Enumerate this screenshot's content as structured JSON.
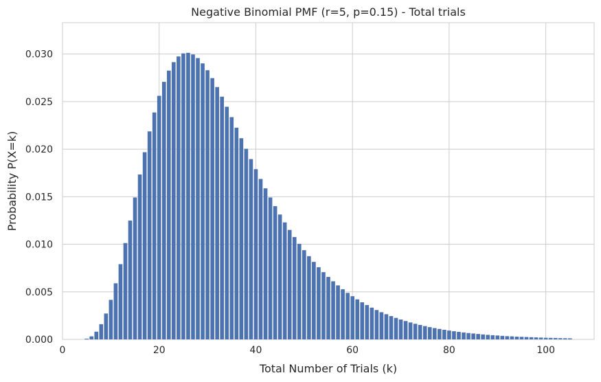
{
  "chart_data": {
    "type": "bar",
    "title": "Negative Binomial PMF (r=5, p=0.15) - Total trials",
    "xlabel": "Total Number of Trials (k)",
    "ylabel": "Probability P(X=k)",
    "xlim": [
      0,
      110
    ],
    "ylim": [
      0,
      0.0333
    ],
    "xticks": [
      "0",
      "20",
      "40",
      "60",
      "80",
      "100"
    ],
    "yticks": [
      "0.000",
      "0.005",
      "0.010",
      "0.015",
      "0.020",
      "0.025",
      "0.030"
    ],
    "grid": true,
    "bar_color": "#4c72b0",
    "x": [
      5,
      6,
      7,
      8,
      9,
      10,
      11,
      12,
      13,
      14,
      15,
      16,
      17,
      18,
      19,
      20,
      21,
      22,
      23,
      24,
      25,
      26,
      27,
      28,
      29,
      30,
      31,
      32,
      33,
      34,
      35,
      36,
      37,
      38,
      39,
      40,
      41,
      42,
      43,
      44,
      45,
      46,
      47,
      48,
      49,
      50,
      51,
      52,
      53,
      54,
      55,
      56,
      57,
      58,
      59,
      60,
      61,
      62,
      63,
      64,
      65,
      66,
      67,
      68,
      69,
      70,
      71,
      72,
      73,
      74,
      75,
      76,
      77,
      78,
      79,
      80,
      81,
      82,
      83,
      84,
      85,
      86,
      87,
      88,
      89,
      90,
      91,
      92,
      93,
      94,
      95,
      96,
      97,
      98,
      99,
      100,
      101,
      102,
      103,
      104,
      105
    ],
    "values": [
      8e-05,
      0.00032,
      0.00081,
      0.0016,
      0.00272,
      0.00416,
      0.0059,
      0.00791,
      0.01013,
      0.01249,
      0.01492,
      0.01734,
      0.01968,
      0.02187,
      0.02386,
      0.02561,
      0.02708,
      0.02826,
      0.02915,
      0.02975,
      0.03007,
      0.03013,
      0.02996,
      0.02958,
      0.02902,
      0.0283,
      0.02747,
      0.02653,
      0.02552,
      0.02446,
      0.02337,
      0.02226,
      0.02115,
      0.02004,
      0.01896,
      0.0179,
      0.01687,
      0.01588,
      0.01492,
      0.01401,
      0.01313,
      0.0123,
      0.01151,
      0.01076,
      0.01005,
      0.00938,
      0.00875,
      0.00815,
      0.00759,
      0.00707,
      0.00657,
      0.00611,
      0.00568,
      0.00527,
      0.00489,
      0.00454,
      0.00421,
      0.0039,
      0.00361,
      0.00334,
      0.00309,
      0.00286,
      0.00265,
      0.00245,
      0.00226,
      0.00209,
      0.00193,
      0.00178,
      0.00164,
      0.00152,
      0.0014,
      0.00129,
      0.00119,
      0.0011,
      0.00101,
      0.00093,
      0.00086,
      0.00079,
      0.00073,
      0.00067,
      0.00062,
      0.00057,
      0.00052,
      0.00048,
      0.00044,
      0.00041,
      0.00037,
      0.00034,
      0.00032,
      0.00029,
      0.00027,
      0.00025,
      0.00023,
      0.00021,
      0.00019,
      0.00017,
      0.00016,
      0.00015,
      0.00013,
      0.00012,
      0.00011
    ]
  }
}
